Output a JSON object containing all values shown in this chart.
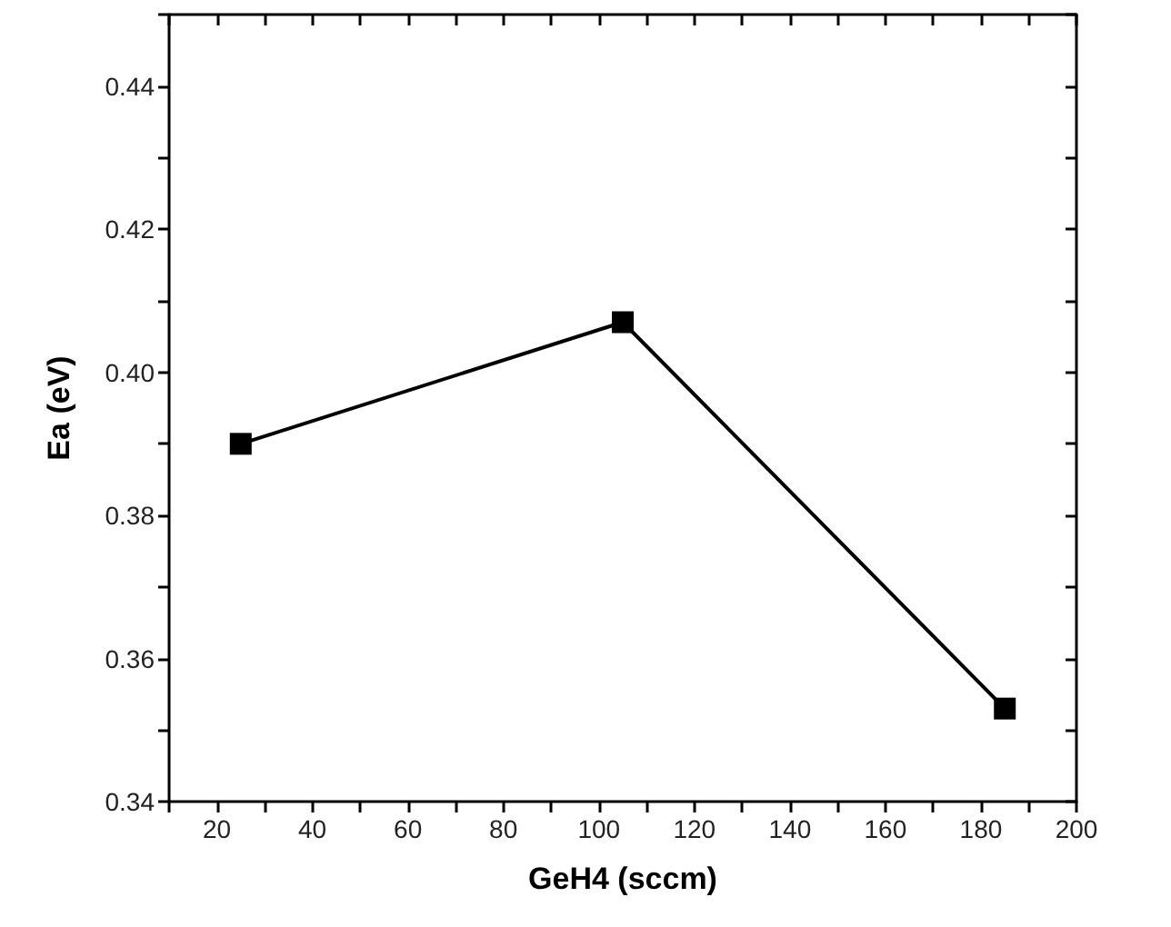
{
  "chart_data": {
    "type": "line",
    "xlabel": "GeH4 (sccm)",
    "ylabel": "Ea (eV)",
    "x": [
      25,
      105,
      185
    ],
    "series": [
      {
        "color": "#000000",
        "values": [
          0.39,
          0.407,
          0.353
        ]
      }
    ],
    "marker": "square",
    "line_style": "solid",
    "xlim": [
      10,
      200
    ],
    "xticks": [
      {
        "value": 10,
        "label": null
      },
      20,
      {
        "value": 30,
        "label": null
      },
      40,
      {
        "value": 50,
        "label": null
      },
      60,
      {
        "value": 70,
        "label": null
      },
      80,
      {
        "value": 90,
        "label": null
      },
      100,
      {
        "value": 110,
        "label": null
      },
      120,
      {
        "value": 130,
        "label": null
      },
      140,
      {
        "value": 150,
        "label": null
      },
      160,
      {
        "value": 170,
        "label": null
      },
      180,
      {
        "value": 190,
        "label": null
      },
      200
    ],
    "ylim": [
      0.34,
      0.45
    ],
    "yticks": [
      {
        "value": 0.34,
        "label": "0.34"
      },
      {
        "value": 0.35,
        "label": null
      },
      {
        "value": 0.36,
        "label": "0.36"
      },
      {
        "value": 0.37,
        "label": null
      },
      {
        "value": 0.38,
        "label": "0.38"
      },
      {
        "value": 0.39,
        "label": null
      },
      {
        "value": 0.4,
        "label": "0.40"
      },
      {
        "value": 0.41,
        "label": null
      },
      {
        "value": 0.42,
        "label": "0.42"
      },
      {
        "value": 0.43,
        "label": null
      },
      {
        "value": 0.44,
        "label": "0.44"
      },
      {
        "value": 0.45,
        "label": null
      }
    ]
  }
}
